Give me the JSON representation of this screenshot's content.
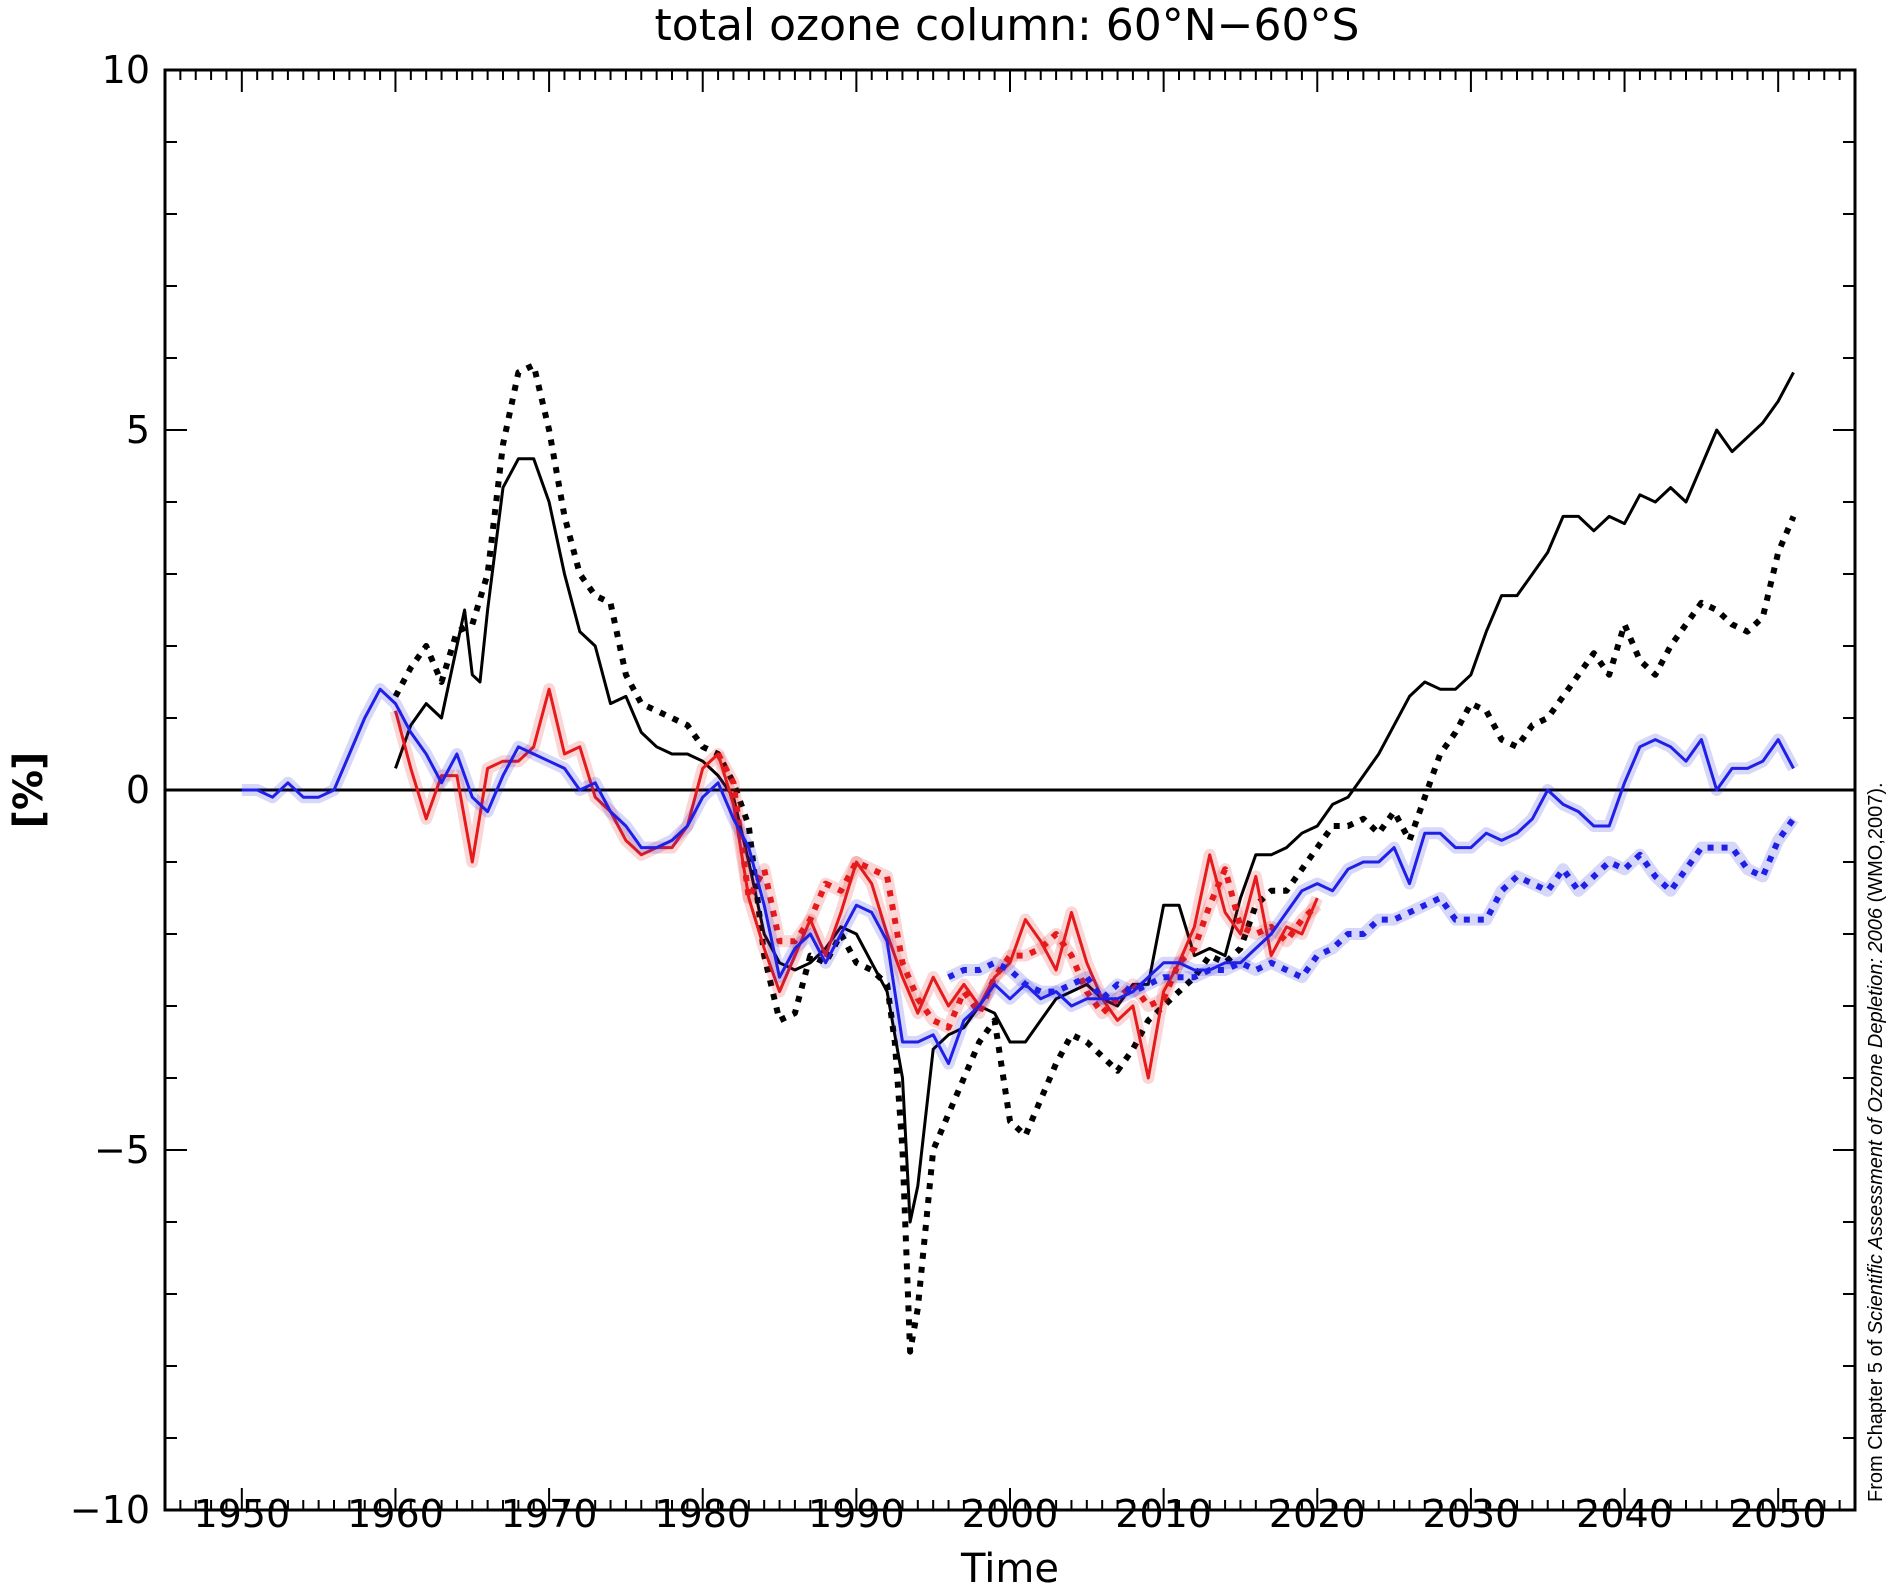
{
  "chart_data": {
    "type": "line",
    "title": "total ozone column: 60°N−60°S",
    "xlabel": "Time",
    "ylabel": "[%]",
    "xlim": [
      1945,
      2055
    ],
    "ylim": [
      -10,
      10
    ],
    "xticks": [
      1950,
      1960,
      1970,
      1980,
      1990,
      2000,
      2010,
      2020,
      2030,
      2040,
      2050
    ],
    "xtick_labels": [
      "1950",
      "1960",
      "1970",
      "1980",
      "1990",
      "2000",
      "2010",
      "2020",
      "2030",
      "2040",
      "2050"
    ],
    "yticks": [
      10,
      5,
      0,
      -5,
      -10
    ],
    "ytick_labels": [
      "10",
      "5",
      "0",
      "−5",
      "−10"
    ],
    "grid": false,
    "reference_line": 0,
    "credit": {
      "prefix": "From Chapter 5 of ",
      "title_italic": "Scientific Assessment of Ozone Depletion: 2006",
      "suffix": " (WMO,2007)."
    },
    "series": [
      {
        "color": "#000000",
        "style": "solid",
        "x": [
          1960,
          1961,
          1962,
          1963,
          1964,
          1964.5,
          1965,
          1965.5,
          1966,
          1967,
          1968,
          1969,
          1970,
          1971,
          1972,
          1973,
          1974,
          1975,
          1976,
          1977,
          1978,
          1979,
          1980,
          1981,
          1982,
          1983,
          1984,
          1985,
          1986,
          1987,
          1988,
          1989,
          1990,
          1991,
          1992,
          1993,
          1993.5,
          1994,
          1995,
          1996,
          1997,
          1998,
          1999,
          2000,
          2001,
          2002,
          2003,
          2004,
          2005,
          2006,
          2007,
          2008,
          2009,
          2010,
          2011,
          2012,
          2013,
          2014,
          2015,
          2016,
          2017,
          2018,
          2019,
          2020,
          2021,
          2022,
          2023,
          2024,
          2025,
          2026,
          2027,
          2028,
          2029,
          2030,
          2031,
          2032,
          2033,
          2034,
          2035,
          2036,
          2037,
          2038,
          2039,
          2040,
          2041,
          2042,
          2043,
          2044,
          2045,
          2046,
          2047,
          2048,
          2049,
          2050,
          2051
        ],
        "y": [
          0.3,
          0.9,
          1.2,
          1.0,
          2.0,
          2.5,
          1.6,
          1.5,
          2.5,
          4.2,
          4.6,
          4.6,
          4.0,
          3.0,
          2.2,
          2.0,
          1.2,
          1.3,
          0.8,
          0.6,
          0.5,
          0.5,
          0.4,
          0.2,
          -0.1,
          -1.0,
          -2.0,
          -2.4,
          -2.5,
          -2.4,
          -2.2,
          -1.9,
          -2.0,
          -2.4,
          -2.8,
          -4.0,
          -6.0,
          -5.5,
          -3.6,
          -3.4,
          -3.3,
          -3.0,
          -3.1,
          -3.5,
          -3.5,
          -3.2,
          -2.9,
          -2.8,
          -2.7,
          -2.9,
          -3.0,
          -2.7,
          -2.7,
          -1.6,
          -1.6,
          -2.3,
          -2.2,
          -2.3,
          -1.5,
          -0.9,
          -0.9,
          -0.8,
          -0.6,
          -0.5,
          -0.2,
          -0.1,
          0.2,
          0.5,
          0.9,
          1.3,
          1.5,
          1.4,
          1.4,
          1.6,
          2.2,
          2.7,
          2.7,
          3.0,
          3.3,
          3.8,
          3.8,
          3.6,
          3.8,
          3.7,
          4.1,
          4.0,
          4.2,
          4.0,
          4.5,
          5.0,
          4.7,
          4.9,
          5.1,
          5.4,
          5.8
        ]
      },
      {
        "color": "#000000",
        "style": "dotted",
        "x": [
          1960,
          1961,
          1962,
          1963,
          1964,
          1965,
          1966,
          1967,
          1968,
          1969,
          1970,
          1971,
          1972,
          1973,
          1974,
          1975,
          1976,
          1977,
          1978,
          1979,
          1980,
          1981,
          1982,
          1983,
          1984,
          1985,
          1986,
          1987,
          1988,
          1989,
          1990,
          1991,
          1992,
          1992.5,
          1993,
          1993.5,
          1994,
          1995,
          1996,
          1997,
          1998,
          1999,
          2000,
          2001,
          2002,
          2003,
          2004,
          2005,
          2006,
          2007,
          2008,
          2009,
          2010,
          2011,
          2012,
          2013,
          2014,
          2015,
          2016,
          2017,
          2018,
          2019,
          2020,
          2021,
          2022,
          2023,
          2024,
          2025,
          2026,
          2027,
          2028,
          2029,
          2030,
          2031,
          2032,
          2033,
          2034,
          2035,
          2036,
          2037,
          2038,
          2039,
          2040,
          2041,
          2042,
          2043,
          2044,
          2045,
          2046,
          2047,
          2048,
          2049,
          2050,
          2051
        ],
        "y": [
          1.3,
          1.7,
          2.0,
          1.5,
          2.2,
          2.3,
          3.0,
          4.8,
          5.8,
          5.9,
          5.0,
          3.8,
          3.0,
          2.7,
          2.6,
          1.6,
          1.2,
          1.1,
          1.0,
          0.9,
          0.6,
          0.5,
          0.1,
          -0.5,
          -2.3,
          -3.2,
          -3.1,
          -2.3,
          -2.4,
          -2.0,
          -2.4,
          -2.5,
          -2.7,
          -3.5,
          -5.0,
          -7.8,
          -7.2,
          -5.0,
          -4.5,
          -4.0,
          -3.5,
          -3.2,
          -4.6,
          -4.8,
          -4.3,
          -3.8,
          -3.4,
          -3.5,
          -3.7,
          -3.9,
          -3.6,
          -3.2,
          -3.0,
          -2.8,
          -2.6,
          -2.3,
          -2.4,
          -2.2,
          -1.6,
          -1.4,
          -1.4,
          -1.1,
          -0.8,
          -0.5,
          -0.5,
          -0.4,
          -0.6,
          -0.3,
          -0.7,
          -0.1,
          0.5,
          0.8,
          1.2,
          1.1,
          0.7,
          0.6,
          0.9,
          1.0,
          1.3,
          1.6,
          1.9,
          1.6,
          2.3,
          1.8,
          1.6,
          2.0,
          2.3,
          2.6,
          2.5,
          2.3,
          2.2,
          2.4,
          3.3,
          3.8
        ]
      },
      {
        "color": "#e41a1c",
        "style": "solid",
        "x": [
          1960,
          1961,
          1962,
          1963,
          1964,
          1965,
          1966,
          1967,
          1968,
          1969,
          1970,
          1971,
          1972,
          1973,
          1974,
          1975,
          1976,
          1977,
          1978,
          1979,
          1980,
          1981,
          1982,
          1983,
          1984,
          1985,
          1986,
          1987,
          1988,
          1989,
          1990,
          1991,
          1992,
          1993,
          1994,
          1995,
          1996,
          1997,
          1998,
          1999,
          2000,
          2001,
          2002,
          2003,
          2004,
          2005,
          2006,
          2007,
          2008,
          2009,
          2010,
          2011,
          2012,
          2013,
          2014,
          2015,
          2016,
          2017,
          2018,
          2019,
          2020
        ],
        "y": [
          1.1,
          0.3,
          -0.4,
          0.2,
          0.2,
          -1.0,
          0.3,
          0.4,
          0.4,
          0.6,
          1.4,
          0.5,
          0.6,
          -0.1,
          -0.3,
          -0.7,
          -0.9,
          -0.8,
          -0.8,
          -0.5,
          0.3,
          0.5,
          -0.2,
          -1.5,
          -2.2,
          -2.8,
          -2.3,
          -1.8,
          -2.3,
          -1.7,
          -1.0,
          -1.3,
          -2.0,
          -2.6,
          -3.1,
          -2.6,
          -3.0,
          -2.7,
          -3.0,
          -2.6,
          -2.4,
          -1.8,
          -2.1,
          -2.5,
          -1.7,
          -2.4,
          -2.9,
          -3.2,
          -3.0,
          -4.0,
          -2.8,
          -2.4,
          -1.9,
          -0.9,
          -1.7,
          -2.0,
          -1.2,
          -2.3,
          -1.9,
          -2.0,
          -1.5
        ]
      },
      {
        "color": "#e41a1c",
        "style": "dotted",
        "x": [
          1981,
          1982,
          1983,
          1984,
          1985,
          1986,
          1987,
          1988,
          1989,
          1990,
          1991,
          1992,
          1993,
          1994,
          1995,
          1996,
          1997,
          1998,
          1999,
          2000,
          2001,
          2002,
          2003,
          2004,
          2005,
          2006,
          2007,
          2008,
          2009,
          2010,
          2011,
          2012,
          2013,
          2014,
          2015,
          2016,
          2017,
          2018,
          2019,
          2020
        ],
        "y": [
          0.5,
          0.1,
          -1.5,
          -1.1,
          -2.1,
          -2.1,
          -1.8,
          -1.3,
          -1.4,
          -1.0,
          -1.1,
          -1.2,
          -2.4,
          -2.9,
          -3.2,
          -3.3,
          -2.8,
          -3.1,
          -2.6,
          -2.3,
          -2.3,
          -2.2,
          -2.0,
          -2.3,
          -2.8,
          -3.1,
          -2.9,
          -2.7,
          -3.0,
          -2.9,
          -2.4,
          -2.2,
          -1.6,
          -1.1,
          -1.9,
          -2.0,
          -1.9,
          -2.1,
          -1.8,
          -1.6
        ]
      },
      {
        "color": "#1f1fe6",
        "style": "solid",
        "x": [
          1950,
          1951,
          1952,
          1953,
          1954,
          1955,
          1956,
          1957,
          1958,
          1959,
          1960,
          1961,
          1962,
          1963,
          1964,
          1965,
          1966,
          1967,
          1968,
          1969,
          1970,
          1971,
          1972,
          1973,
          1974,
          1975,
          1976,
          1977,
          1978,
          1979,
          1980,
          1981,
          1982,
          1983,
          1984,
          1985,
          1986,
          1987,
          1988,
          1989,
          1990,
          1991,
          1992,
          1993,
          1994,
          1995,
          1996,
          1997,
          1998,
          1999,
          2000,
          2001,
          2002,
          2003,
          2004,
          2005,
          2006,
          2007,
          2008,
          2009,
          2010,
          2011,
          2012,
          2013,
          2014,
          2015,
          2016,
          2017,
          2018,
          2019,
          2020,
          2021,
          2022,
          2023,
          2024,
          2025,
          2026,
          2027,
          2028,
          2029,
          2030,
          2031,
          2032,
          2033,
          2034,
          2035,
          2036,
          2037,
          2038,
          2039,
          2040,
          2041,
          2042,
          2043,
          2044,
          2045,
          2046,
          2047,
          2048,
          2049,
          2050,
          2051
        ],
        "y": [
          0.0,
          0.0,
          -0.1,
          0.1,
          -0.1,
          -0.1,
          0.0,
          0.5,
          1.0,
          1.4,
          1.2,
          0.8,
          0.5,
          0.1,
          0.5,
          -0.1,
          -0.3,
          0.2,
          0.6,
          0.5,
          0.4,
          0.3,
          0.0,
          0.1,
          -0.3,
          -0.5,
          -0.8,
          -0.8,
          -0.7,
          -0.5,
          -0.1,
          0.1,
          -0.4,
          -0.8,
          -1.6,
          -2.6,
          -2.2,
          -2.0,
          -2.4,
          -2.0,
          -1.6,
          -1.7,
          -2.1,
          -3.5,
          -3.5,
          -3.4,
          -3.8,
          -3.2,
          -3.0,
          -2.7,
          -2.9,
          -2.7,
          -2.9,
          -2.8,
          -3.0,
          -2.9,
          -2.9,
          -2.9,
          -2.8,
          -2.6,
          -2.4,
          -2.4,
          -2.5,
          -2.5,
          -2.4,
          -2.4,
          -2.2,
          -2.0,
          -1.7,
          -1.4,
          -1.3,
          -1.4,
          -1.1,
          -1.0,
          -1.0,
          -0.8,
          -1.3,
          -0.6,
          -0.6,
          -0.8,
          -0.8,
          -0.6,
          -0.7,
          -0.6,
          -0.4,
          0.0,
          -0.2,
          -0.3,
          -0.5,
          -0.5,
          0.1,
          0.6,
          0.7,
          0.6,
          0.4,
          0.7,
          0.0,
          0.3,
          0.3,
          0.4,
          0.7,
          0.3
        ]
      },
      {
        "color": "#1f1fe6",
        "style": "dotted",
        "x": [
          1996,
          1997,
          1998,
          1999,
          2000,
          2001,
          2002,
          2003,
          2004,
          2005,
          2006,
          2007,
          2008,
          2009,
          2010,
          2011,
          2012,
          2013,
          2014,
          2015,
          2016,
          2017,
          2018,
          2019,
          2020,
          2021,
          2022,
          2023,
          2024,
          2025,
          2026,
          2027,
          2028,
          2029,
          2030,
          2031,
          2032,
          2033,
          2034,
          2035,
          2036,
          2037,
          2038,
          2039,
          2040,
          2041,
          2042,
          2043,
          2044,
          2045,
          2046,
          2047,
          2048,
          2049,
          2050,
          2051
        ],
        "y": [
          -2.6,
          -2.5,
          -2.5,
          -2.4,
          -2.5,
          -2.7,
          -2.8,
          -2.8,
          -2.7,
          -2.6,
          -2.9,
          -2.7,
          -2.8,
          -2.7,
          -2.6,
          -2.6,
          -2.6,
          -2.5,
          -2.5,
          -2.4,
          -2.5,
          -2.4,
          -2.5,
          -2.6,
          -2.3,
          -2.2,
          -2.0,
          -2.0,
          -1.8,
          -1.8,
          -1.7,
          -1.6,
          -1.5,
          -1.8,
          -1.8,
          -1.8,
          -1.4,
          -1.2,
          -1.3,
          -1.4,
          -1.1,
          -1.4,
          -1.2,
          -1.0,
          -1.1,
          -0.9,
          -1.2,
          -1.4,
          -1.1,
          -0.8,
          -0.8,
          -0.8,
          -1.1,
          -1.2,
          -0.7,
          -0.4
        ]
      }
    ]
  }
}
